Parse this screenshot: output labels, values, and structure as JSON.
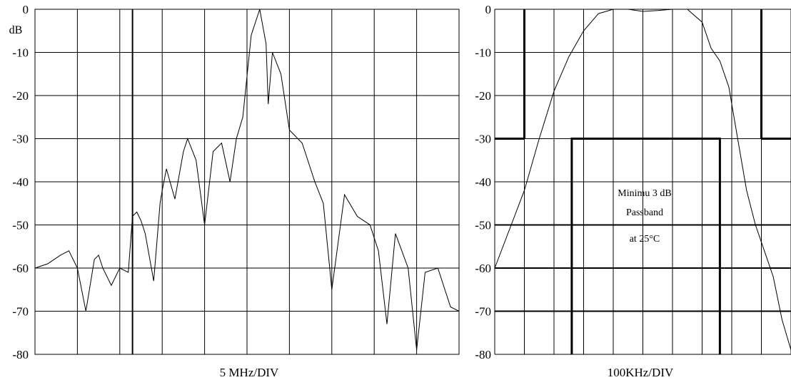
{
  "chart_data": [
    {
      "type": "line",
      "xlabel": "5 MHz/DIV",
      "ylabel": "dB",
      "ylim": [
        -80,
        0
      ],
      "yticks": [
        "0",
        "-10",
        "-20",
        "-30",
        "-40",
        "-50",
        "-60",
        "-70",
        "-80"
      ],
      "x_divisions": 10,
      "grid": true,
      "series": [
        {
          "x": [
            0.0,
            0.3,
            0.6,
            0.8,
            1.0,
            1.2,
            1.4,
            1.5,
            1.6,
            1.8,
            2.0,
            2.2,
            2.3,
            2.4,
            2.5,
            2.6,
            2.8,
            2.95,
            3.0,
            3.1,
            3.3,
            3.5,
            3.6,
            3.8,
            4.0,
            4.2,
            4.4,
            4.6,
            4.75,
            4.9,
            5.1,
            5.3,
            5.45,
            5.5,
            5.6,
            5.8,
            6.0,
            6.3,
            6.6,
            6.8,
            7.0,
            7.3,
            7.6,
            7.9,
            8.1,
            8.3,
            8.5,
            8.8,
            9.0,
            9.2,
            9.5,
            9.8,
            10.0
          ],
          "y": [
            -60,
            -59,
            -57,
            -56,
            -60,
            -70,
            -58,
            -57,
            -60,
            -64,
            -60,
            -61,
            -48,
            -47,
            -49,
            -52,
            -63,
            -45,
            -42,
            -37,
            -44,
            -33,
            -30,
            -35,
            -50,
            -33,
            -31,
            -40,
            -30,
            -25,
            -6,
            0,
            -8,
            -22,
            -10,
            -15,
            -28,
            -31,
            -40,
            -45,
            -65,
            -43,
            -48,
            -50,
            -56,
            -73,
            -52,
            -60,
            -79,
            -61,
            -60,
            -69,
            -70
          ]
        }
      ],
      "markers": [
        {
          "x": 2.3
        }
      ]
    },
    {
      "type": "line",
      "xlabel": "100KHz/DIV",
      "ylim": [
        -80,
        0
      ],
      "yticks": [
        "0",
        "-10",
        "-20",
        "-30",
        "-40",
        "-50",
        "-60",
        "-70",
        "-80"
      ],
      "x_divisions": 10,
      "grid": true,
      "annotation": [
        "Minimu 3 dB",
        "Passband",
        "at 25°C"
      ],
      "series": [
        {
          "x": [
            0.0,
            0.5,
            1.0,
            1.5,
            2.0,
            2.5,
            3.0,
            3.5,
            4.0,
            4.5,
            5.0,
            5.5,
            6.0,
            6.5,
            7.0,
            7.3,
            7.6,
            7.9,
            8.2,
            8.5,
            8.8,
            9.1,
            9.4,
            9.7,
            10.0
          ],
          "y": [
            -60,
            -51,
            -42,
            -30,
            -19,
            -11,
            -5,
            -1,
            0,
            0,
            -0.5,
            -0.3,
            0,
            0,
            -3,
            -9,
            -12,
            -18,
            -30,
            -42,
            -50,
            -56,
            -62,
            -72,
            -79
          ]
        }
      ],
      "mask": {
        "outer": [
          {
            "x": [
              0,
              1
            ],
            "y": [
              -30,
              -30
            ]
          },
          {
            "x": [
              1,
              1
            ],
            "y": [
              -30,
              0
            ]
          },
          {
            "x": [
              9,
              9
            ],
            "y": [
              0,
              -30
            ]
          },
          {
            "x": [
              9,
              10
            ],
            "y": [
              -30,
              -30
            ]
          }
        ],
        "inner": {
          "x": [
            2.6,
            2.6,
            7.6,
            7.6
          ],
          "y": [
            -80,
            -30,
            -30,
            -80
          ]
        }
      },
      "bold_grid_y": [
        -50,
        -60,
        -70
      ]
    }
  ]
}
